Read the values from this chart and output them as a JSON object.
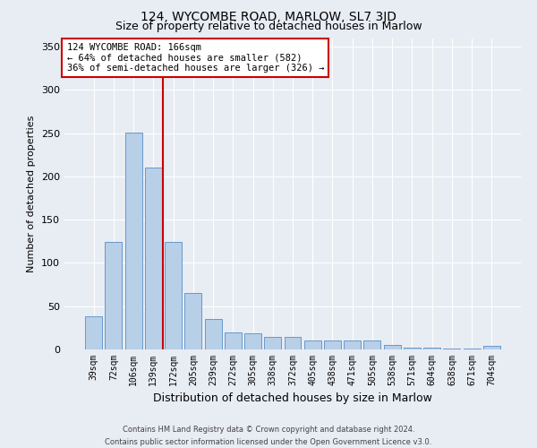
{
  "title": "124, WYCOMBE ROAD, MARLOW, SL7 3JD",
  "subtitle": "Size of property relative to detached houses in Marlow",
  "xlabel": "Distribution of detached houses by size in Marlow",
  "ylabel": "Number of detached properties",
  "categories": [
    "39sqm",
    "72sqm",
    "106sqm",
    "139sqm",
    "172sqm",
    "205sqm",
    "239sqm",
    "272sqm",
    "305sqm",
    "338sqm",
    "372sqm",
    "405sqm",
    "438sqm",
    "471sqm",
    "505sqm",
    "538sqm",
    "571sqm",
    "604sqm",
    "638sqm",
    "671sqm",
    "704sqm"
  ],
  "values": [
    38,
    124,
    251,
    210,
    124,
    65,
    35,
    20,
    19,
    14,
    14,
    10,
    10,
    10,
    10,
    5,
    2,
    2,
    1,
    1,
    4
  ],
  "bar_color": "#b8cfe8",
  "bar_edge_color": "#6699cc",
  "vline_color": "#cc0000",
  "vline_x_index": 3.5,
  "annotation_text": "124 WYCOMBE ROAD: 166sqm\n← 64% of detached houses are smaller (582)\n36% of semi-detached houses are larger (326) →",
  "annotation_box_color": "#ffffff",
  "annotation_box_edge": "#cc0000",
  "ylim": [
    0,
    360
  ],
  "yticks": [
    0,
    50,
    100,
    150,
    200,
    250,
    300,
    350
  ],
  "background_color": "#e8ecf3",
  "grid_color": "#ffffff",
  "footer_line1": "Contains HM Land Registry data © Crown copyright and database right 2024.",
  "footer_line2": "Contains public sector information licensed under the Open Government Licence v3.0.",
  "title_fontsize": 10,
  "subtitle_fontsize": 9,
  "axis_label_fontsize": 8,
  "annotation_fontsize": 7.5,
  "tick_fontsize": 7
}
